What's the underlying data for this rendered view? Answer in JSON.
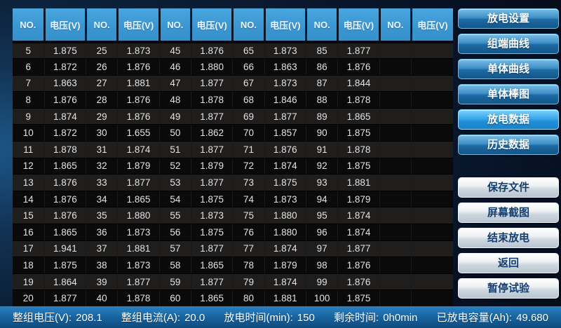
{
  "app_title": "battery-discharge-monitor",
  "colors": {
    "header_blue": "#3b96d2",
    "nav_button_blue": "#1d6aa5",
    "active_button_blue": "#2da0e8",
    "action_button_silver": "#cfd8e0",
    "status_bar_blue": "#18649f",
    "background_navy": "#0b1e36",
    "row_light": "#201e1d",
    "row_dark": "#0a0a0a"
  },
  "table": {
    "no_label": "NO.",
    "voltage_label": "电压(V)",
    "pair_count": 6,
    "rows": [
      [
        "5",
        "1.875",
        "25",
        "1.873",
        "45",
        "1.876",
        "65",
        "1.873",
        "85",
        "1.877",
        "",
        ""
      ],
      [
        "6",
        "1.872",
        "26",
        "1.876",
        "46",
        "1.880",
        "66",
        "1.863",
        "86",
        "1.876",
        "",
        ""
      ],
      [
        "7",
        "1.863",
        "27",
        "1.881",
        "47",
        "1.877",
        "67",
        "1.873",
        "87",
        "1.844",
        "",
        ""
      ],
      [
        "8",
        "1.876",
        "28",
        "1.876",
        "48",
        "1.878",
        "68",
        "1.846",
        "88",
        "1.878",
        "",
        ""
      ],
      [
        "9",
        "1.874",
        "29",
        "1.876",
        "49",
        "1.877",
        "69",
        "1.877",
        "89",
        "1.865",
        "",
        ""
      ],
      [
        "10",
        "1.872",
        "30",
        "1.655",
        "50",
        "1.862",
        "70",
        "1.857",
        "90",
        "1.875",
        "",
        ""
      ],
      [
        "11",
        "1.878",
        "31",
        "1.874",
        "51",
        "1.877",
        "71",
        "1.876",
        "91",
        "1.878",
        "",
        ""
      ],
      [
        "12",
        "1.865",
        "32",
        "1.879",
        "52",
        "1.879",
        "72",
        "1.874",
        "92",
        "1.875",
        "",
        ""
      ],
      [
        "13",
        "1.876",
        "33",
        "1.877",
        "53",
        "1.877",
        "73",
        "1.875",
        "93",
        "1.881",
        "",
        ""
      ],
      [
        "14",
        "1.876",
        "34",
        "1.865",
        "54",
        "1.875",
        "74",
        "1.873",
        "94",
        "1.879",
        "",
        ""
      ],
      [
        "15",
        "1.876",
        "35",
        "1.880",
        "55",
        "1.873",
        "75",
        "1.880",
        "95",
        "1.874",
        "",
        ""
      ],
      [
        "16",
        "1.865",
        "36",
        "1.873",
        "56",
        "1.875",
        "76",
        "1.880",
        "96",
        "1.874",
        "",
        ""
      ],
      [
        "17",
        "1.941",
        "37",
        "1.881",
        "57",
        "1.877",
        "77",
        "1.874",
        "97",
        "1.877",
        "",
        ""
      ],
      [
        "18",
        "1.875",
        "38",
        "1.873",
        "58",
        "1.865",
        "78",
        "1.879",
        "98",
        "1.876",
        "",
        ""
      ],
      [
        "19",
        "1.864",
        "39",
        "1.877",
        "59",
        "1.877",
        "79",
        "1.874",
        "99",
        "1.876",
        "",
        ""
      ],
      [
        "20",
        "1.877",
        "40",
        "1.878",
        "60",
        "1.865",
        "80",
        "1.881",
        "100",
        "1.875",
        "",
        ""
      ]
    ]
  },
  "side_panel": {
    "nav_buttons": [
      {
        "name": "discharge-settings",
        "label": "放电设置",
        "active": false
      },
      {
        "name": "group-curve",
        "label": "组端曲线",
        "active": false
      },
      {
        "name": "cell-curve",
        "label": "单体曲线",
        "active": false
      },
      {
        "name": "cell-bar-chart",
        "label": "单体棒图",
        "active": false
      },
      {
        "name": "discharge-data",
        "label": "放电数据",
        "active": true
      },
      {
        "name": "history-data",
        "label": "历史数据",
        "active": false
      }
    ],
    "action_buttons": [
      {
        "name": "save-file",
        "label": "保存文件"
      },
      {
        "name": "screenshot",
        "label": "屏幕截图"
      },
      {
        "name": "end-discharge",
        "label": "结束放电"
      },
      {
        "name": "back",
        "label": "返回"
      },
      {
        "name": "pause-test",
        "label": "暂停试验"
      }
    ]
  },
  "status_bar": {
    "fields": [
      {
        "name": "pack-voltage",
        "label": "整组电压(V):",
        "value": "208.1"
      },
      {
        "name": "pack-current",
        "label": "整组电流(A):",
        "value": "20.0"
      },
      {
        "name": "discharge-time",
        "label": "放电时间(min):",
        "value": "150"
      },
      {
        "name": "remaining-time",
        "label": "剩余时间:",
        "value": "0h0min"
      },
      {
        "name": "discharged-capacity",
        "label": "已放电容量(Ah):",
        "value": "49.680"
      }
    ]
  }
}
